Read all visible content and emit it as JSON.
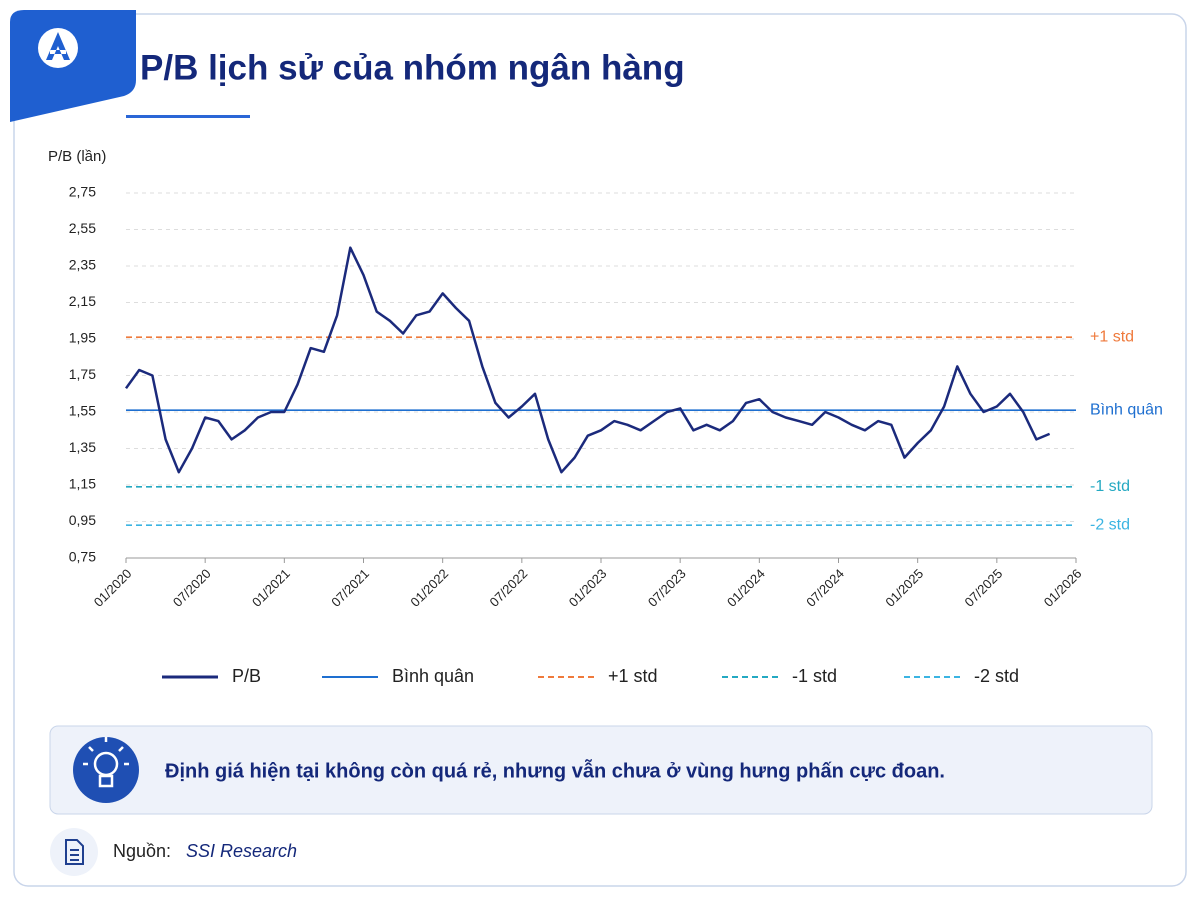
{
  "header": {
    "title": "P/B lịch sử của nhóm ngân hàng"
  },
  "chart_data": {
    "type": "line",
    "y_label": "P/B (lần)",
    "x": [
      "01/2020",
      "02/2020",
      "03/2020",
      "04/2020",
      "05/2020",
      "06/2020",
      "07/2020",
      "08/2020",
      "09/2020",
      "10/2020",
      "11/2020",
      "12/2020",
      "01/2021",
      "02/2021",
      "03/2021",
      "04/2021",
      "05/2021",
      "06/2021",
      "07/2021",
      "08/2021",
      "09/2021",
      "10/2021",
      "11/2021",
      "12/2021",
      "01/2022",
      "02/2022",
      "03/2022",
      "04/2022",
      "05/2022",
      "06/2022",
      "07/2022",
      "08/2022",
      "09/2022",
      "10/2022",
      "11/2022",
      "12/2022",
      "01/2023",
      "02/2023",
      "03/2023",
      "04/2023",
      "05/2023",
      "06/2023",
      "07/2023",
      "08/2023",
      "09/2023",
      "10/2023",
      "11/2023",
      "12/2023",
      "01/2024",
      "02/2024",
      "03/2024",
      "04/2024",
      "05/2024",
      "06/2024",
      "07/2024",
      "08/2024",
      "09/2024",
      "10/2024",
      "11/2024",
      "12/2024",
      "01/2025",
      "02/2025",
      "03/2025",
      "04/2025",
      "05/2025",
      "06/2025",
      "07/2025",
      "08/2025",
      "09/2025",
      "10/2025",
      "11/2025"
    ],
    "series": [
      {
        "name": "P/B",
        "color": "#1b2a7c",
        "values": [
          1.68,
          1.78,
          1.75,
          1.4,
          1.22,
          1.35,
          1.52,
          1.5,
          1.4,
          1.45,
          1.52,
          1.55,
          1.55,
          1.7,
          1.9,
          1.88,
          2.08,
          2.45,
          2.3,
          2.1,
          2.05,
          1.98,
          2.08,
          2.1,
          2.2,
          2.12,
          2.05,
          1.8,
          1.6,
          1.52,
          1.58,
          1.65,
          1.4,
          1.22,
          1.3,
          1.42,
          1.45,
          1.5,
          1.48,
          1.45,
          1.5,
          1.55,
          1.57,
          1.45,
          1.48,
          1.45,
          1.5,
          1.6,
          1.62,
          1.55,
          1.52,
          1.5,
          1.48,
          1.55,
          1.52,
          1.48,
          1.45,
          1.5,
          1.48,
          1.3,
          1.38,
          1.45,
          1.58,
          1.8,
          1.65,
          1.55,
          1.58,
          1.65,
          1.55,
          1.4,
          1.43
        ]
      }
    ],
    "reference_lines": [
      {
        "name": "Bình quân",
        "value": 1.56,
        "color": "#1e6fd0",
        "dashed": false
      },
      {
        "name": "+1 std",
        "value": 1.96,
        "color": "#ef7a3c",
        "dashed": true
      },
      {
        "name": "-1 std",
        "value": 1.14,
        "color": "#24a9c2",
        "dashed": true
      },
      {
        "name": "-2 std",
        "value": 0.93,
        "color": "#3bb4e2",
        "dashed": true
      }
    ],
    "ylim": [
      0.75,
      2.75
    ],
    "yticks": [
      {
        "value": 0.75,
        "label": "0,75"
      },
      {
        "value": 0.95,
        "label": "0,95"
      },
      {
        "value": 1.15,
        "label": "1,15"
      },
      {
        "value": 1.35,
        "label": "1,35"
      },
      {
        "value": 1.55,
        "label": "1,55"
      },
      {
        "value": 1.75,
        "label": "1,75"
      },
      {
        "value": 1.95,
        "label": "1,95"
      },
      {
        "value": 2.15,
        "label": "2,15"
      },
      {
        "value": 2.35,
        "label": "2,35"
      },
      {
        "value": 2.55,
        "label": "2,55"
      },
      {
        "value": 2.75,
        "label": "2,75"
      }
    ],
    "xlim": [
      "01/2020",
      "01/2026"
    ],
    "xticks": [
      "01/2020",
      "07/2020",
      "01/2021",
      "07/2021",
      "01/2022",
      "07/2022",
      "01/2023",
      "07/2023",
      "01/2024",
      "07/2024",
      "01/2025",
      "07/2025",
      "01/2026"
    ],
    "grid": true
  },
  "insight": "Định giá hiện tại không còn quá rẻ, nhưng vẫn chưa ở vùng hưng phấn cực đoan.",
  "source": {
    "label": "Nguồn:",
    "name": "SSI Research"
  }
}
